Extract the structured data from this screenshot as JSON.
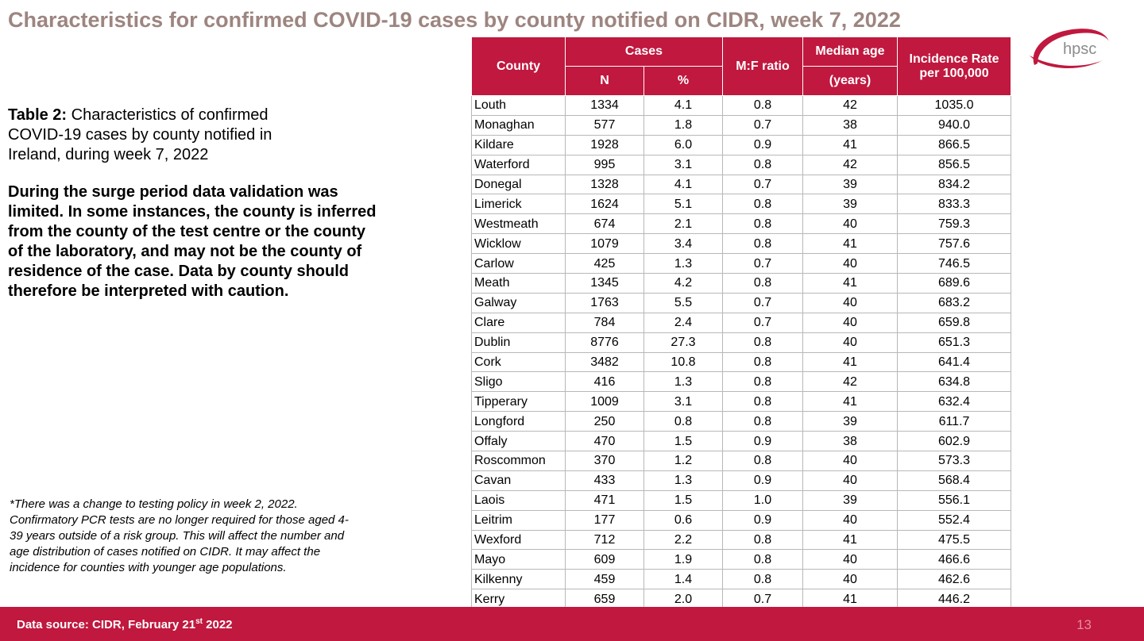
{
  "slide": {
    "title": "Characteristics for confirmed COVID-19 cases by county notified on CIDR, week 7, 2022"
  },
  "caption": {
    "label": "Table 2:",
    "text": "Characteristics of confirmed COVID-19 cases by county notified in Ireland, during week 7, 2022"
  },
  "caveat": "During the surge period data validation was limited. In some instances, the county is inferred from the county of the test centre or the county of the laboratory, and may not be the county of residence of the case. Data by county should therefore be interpreted with caution.",
  "footnote": "*There was a change to testing policy in week 2, 2022. Confirmatory PCR tests are no longer required for those aged 4-39 years outside of a risk group. This will affect the number and age distribution of cases notified on CIDR. It may affect the incidence for counties with younger age populations.",
  "logo": {
    "text": "hpsc",
    "accent_color": "#c0183e"
  },
  "table": {
    "headers": {
      "county": "County",
      "cases": "Cases",
      "n": "N",
      "percent": "%",
      "mf_ratio": "M:F ratio",
      "median_age": "Median age",
      "median_age_unit": "(years)",
      "incidence_line1": "Incidence Rate",
      "incidence_line2": "per 100,000"
    },
    "rows": [
      {
        "county": "Louth",
        "n": "1334",
        "pct": "4.1",
        "mf": "0.8",
        "age": "42",
        "rate": "1035.0"
      },
      {
        "county": "Monaghan",
        "n": "577",
        "pct": "1.8",
        "mf": "0.7",
        "age": "38",
        "rate": "940.0"
      },
      {
        "county": "Kildare",
        "n": "1928",
        "pct": "6.0",
        "mf": "0.9",
        "age": "41",
        "rate": "866.5"
      },
      {
        "county": "Waterford",
        "n": "995",
        "pct": "3.1",
        "mf": "0.8",
        "age": "42",
        "rate": "856.5"
      },
      {
        "county": "Donegal",
        "n": "1328",
        "pct": "4.1",
        "mf": "0.7",
        "age": "39",
        "rate": "834.2"
      },
      {
        "county": "Limerick",
        "n": "1624",
        "pct": "5.1",
        "mf": "0.8",
        "age": "39",
        "rate": "833.3"
      },
      {
        "county": "Westmeath",
        "n": "674",
        "pct": "2.1",
        "mf": "0.8",
        "age": "40",
        "rate": "759.3"
      },
      {
        "county": "Wicklow",
        "n": "1079",
        "pct": "3.4",
        "mf": "0.8",
        "age": "41",
        "rate": "757.6"
      },
      {
        "county": "Carlow",
        "n": "425",
        "pct": "1.3",
        "mf": "0.7",
        "age": "40",
        "rate": "746.5"
      },
      {
        "county": "Meath",
        "n": "1345",
        "pct": "4.2",
        "mf": "0.8",
        "age": "41",
        "rate": "689.6"
      },
      {
        "county": "Galway",
        "n": "1763",
        "pct": "5.5",
        "mf": "0.7",
        "age": "40",
        "rate": "683.2"
      },
      {
        "county": "Clare",
        "n": "784",
        "pct": "2.4",
        "mf": "0.7",
        "age": "40",
        "rate": "659.8"
      },
      {
        "county": "Dublin",
        "n": "8776",
        "pct": "27.3",
        "mf": "0.8",
        "age": "40",
        "rate": "651.3"
      },
      {
        "county": "Cork",
        "n": "3482",
        "pct": "10.8",
        "mf": "0.8",
        "age": "41",
        "rate": "641.4"
      },
      {
        "county": "Sligo",
        "n": "416",
        "pct": "1.3",
        "mf": "0.8",
        "age": "42",
        "rate": "634.8"
      },
      {
        "county": "Tipperary",
        "n": "1009",
        "pct": "3.1",
        "mf": "0.8",
        "age": "41",
        "rate": "632.4"
      },
      {
        "county": "Longford",
        "n": "250",
        "pct": "0.8",
        "mf": "0.8",
        "age": "39",
        "rate": "611.7"
      },
      {
        "county": "Offaly",
        "n": "470",
        "pct": "1.5",
        "mf": "0.9",
        "age": "38",
        "rate": "602.9"
      },
      {
        "county": "Roscommon",
        "n": "370",
        "pct": "1.2",
        "mf": "0.8",
        "age": "40",
        "rate": "573.3"
      },
      {
        "county": "Cavan",
        "n": "433",
        "pct": "1.3",
        "mf": "0.9",
        "age": "40",
        "rate": "568.4"
      },
      {
        "county": "Laois",
        "n": "471",
        "pct": "1.5",
        "mf": "1.0",
        "age": "39",
        "rate": "556.1"
      },
      {
        "county": "Leitrim",
        "n": "177",
        "pct": "0.6",
        "mf": "0.9",
        "age": "40",
        "rate": "552.4"
      },
      {
        "county": "Wexford",
        "n": "712",
        "pct": "2.2",
        "mf": "0.8",
        "age": "41",
        "rate": "475.5"
      },
      {
        "county": "Mayo",
        "n": "609",
        "pct": "1.9",
        "mf": "0.8",
        "age": "40",
        "rate": "466.6"
      },
      {
        "county": "Kilkenny",
        "n": "459",
        "pct": "1.4",
        "mf": "0.8",
        "age": "40",
        "rate": "462.6"
      },
      {
        "county": "Kerry",
        "n": "659",
        "pct": "2.0",
        "mf": "0.7",
        "age": "41",
        "rate": "446.2"
      }
    ]
  },
  "footer": {
    "source_prefix": "Data source: CIDR, February 21",
    "source_sup": "st",
    "source_suffix": " 2022",
    "page_number": "13",
    "bar_color": "#c0183e"
  }
}
